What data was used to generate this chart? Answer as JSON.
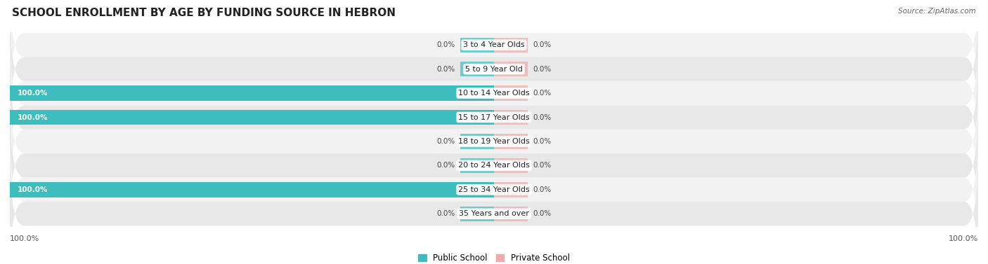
{
  "title": "SCHOOL ENROLLMENT BY AGE BY FUNDING SOURCE IN HEBRON",
  "source": "Source: ZipAtlas.com",
  "categories": [
    "3 to 4 Year Olds",
    "5 to 9 Year Old",
    "10 to 14 Year Olds",
    "15 to 17 Year Olds",
    "18 to 19 Year Olds",
    "20 to 24 Year Olds",
    "25 to 34 Year Olds",
    "35 Years and over"
  ],
  "public_values": [
    0.0,
    0.0,
    100.0,
    100.0,
    0.0,
    0.0,
    100.0,
    0.0
  ],
  "private_values": [
    0.0,
    0.0,
    0.0,
    0.0,
    0.0,
    0.0,
    0.0,
    0.0
  ],
  "public_color": "#3DBDBD",
  "private_color": "#F0AAAA",
  "row_bg_odd": "#F2F2F2",
  "row_bg_even": "#E8E8E8",
  "title_fontsize": 11,
  "label_fontsize": 8,
  "value_fontsize": 7.5,
  "legend_fontsize": 8.5,
  "axis_label_fontsize": 8,
  "background_color": "#FFFFFF",
  "public_label": "Public School",
  "private_label": "Private School",
  "stub_size": 7,
  "xlim_left": -100,
  "xlim_right": 100
}
